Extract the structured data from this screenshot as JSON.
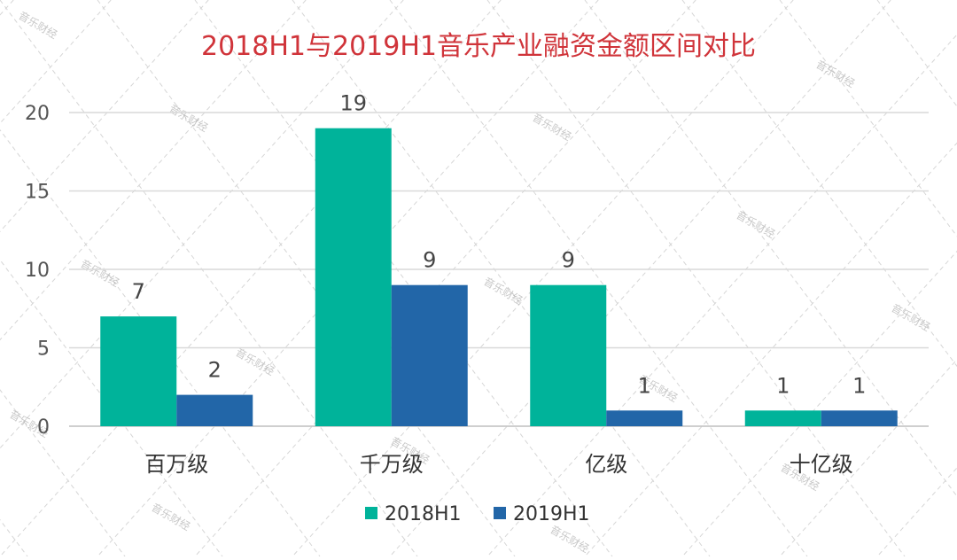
{
  "chart_data": {
    "type": "bar",
    "title": "2018H1与2019H1音乐产业融资金额区间对比",
    "categories": [
      "百万级",
      "千万级",
      "亿级",
      "十亿级"
    ],
    "series": [
      {
        "name": "2018H1",
        "values": [
          7,
          19,
          9,
          1
        ],
        "color": "#00b39a"
      },
      {
        "name": "2019H1",
        "values": [
          2,
          9,
          1,
          1
        ],
        "color": "#2266a8"
      }
    ],
    "ylim": [
      0,
      20
    ],
    "yticks": [
      0,
      5,
      10,
      15,
      20
    ],
    "xlabel": "",
    "ylabel": "",
    "grid": true,
    "legend_position": "bottom",
    "title_color": "#d0343a",
    "watermark": "音乐财经"
  }
}
